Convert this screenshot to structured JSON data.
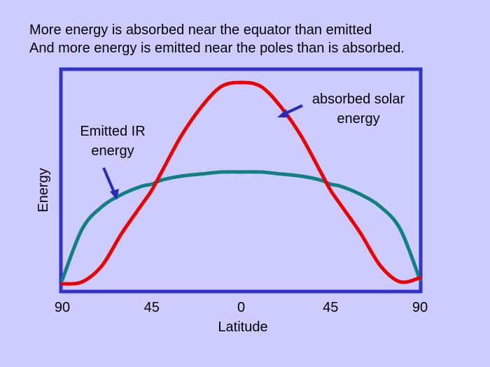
{
  "header": {
    "line1": "More energy is absorbed near the equator than emitted",
    "line2": "And more energy is emitted near the poles than is absorbed."
  },
  "colors": {
    "background": "#ccccff",
    "frame": "#3333cc",
    "absorbed": "#ee0000",
    "emitted": "#118080",
    "arrow": "#2a2ab8"
  },
  "chart_data": {
    "type": "line",
    "xlabel": "Latitude",
    "ylabel": "Energy",
    "x_tick_labels": [
      "90",
      "45",
      "0",
      "45",
      "90"
    ],
    "x_tick_values": [
      -90,
      -45,
      0,
      45,
      90
    ],
    "xlim": [
      -90,
      90
    ],
    "ylim": [
      0,
      1
    ],
    "grid": false,
    "annotations": {
      "absorbed": [
        "absorbed solar",
        "energy"
      ],
      "emitted": [
        "Emitted IR",
        "energy"
      ]
    },
    "series": [
      {
        "key": "absorbed",
        "color": "#ee0000",
        "x": [
          -90,
          -80,
          -70,
          -60,
          -50,
          -45,
          -40,
          -30,
          -20,
          -10,
          0,
          10,
          20,
          30,
          40,
          45,
          50,
          60,
          70,
          80,
          90
        ],
        "y": [
          0.01,
          0.02,
          0.1,
          0.26,
          0.4,
          0.47,
          0.56,
          0.74,
          0.88,
          0.98,
          1.0,
          0.98,
          0.88,
          0.74,
          0.56,
          0.47,
          0.4,
          0.26,
          0.1,
          0.02,
          0.04
        ]
      },
      {
        "key": "emitted",
        "color": "#118080",
        "x": [
          -90,
          -80,
          -70,
          -60,
          -50,
          -45,
          -40,
          -30,
          -20,
          -10,
          0,
          10,
          20,
          30,
          40,
          45,
          50,
          60,
          70,
          80,
          90
        ],
        "y": [
          0.03,
          0.28,
          0.39,
          0.45,
          0.49,
          0.5,
          0.52,
          0.54,
          0.55,
          0.56,
          0.56,
          0.56,
          0.55,
          0.54,
          0.52,
          0.5,
          0.49,
          0.45,
          0.39,
          0.28,
          0.03
        ]
      }
    ]
  }
}
